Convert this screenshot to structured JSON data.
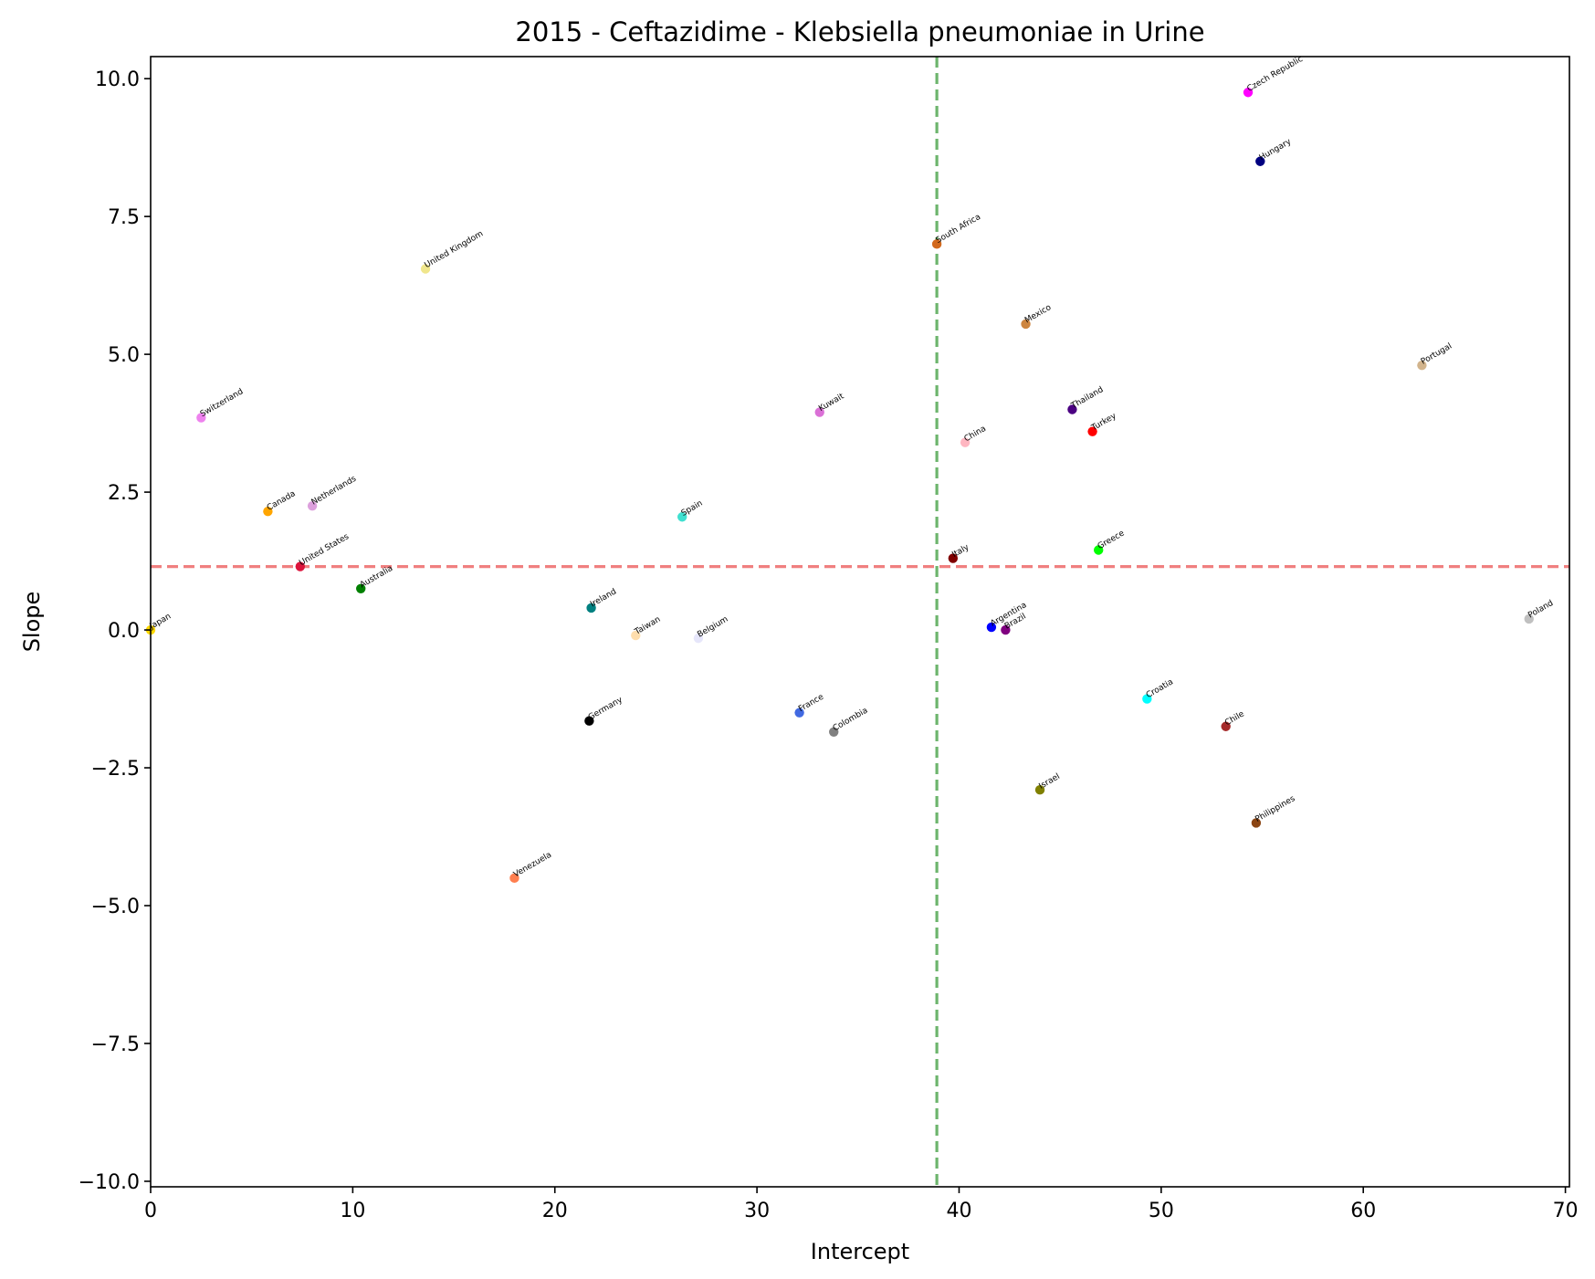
{
  "chart_data": {
    "type": "scatter",
    "title": "2015 - Ceftazidime - Klebsiella pneumoniae in Urine",
    "xlabel": "Intercept",
    "ylabel": "Slope",
    "xlim": [
      0,
      70.2
    ],
    "ylim": [
      -10.1,
      10.4
    ],
    "xticks": [
      0,
      10,
      20,
      30,
      40,
      50,
      60,
      70
    ],
    "yticks": [
      -10.0,
      -7.5,
      -5.0,
      -2.5,
      0.0,
      2.5,
      5.0,
      7.5,
      10.0
    ],
    "xtick_labels": [
      "0",
      "10",
      "20",
      "30",
      "40",
      "50",
      "60",
      "70"
    ],
    "ytick_labels": [
      "−10.0",
      "−7.5",
      "−5.0",
      "−2.5",
      "0.0",
      "2.5",
      "5.0",
      "7.5",
      "10.0"
    ],
    "grid": false,
    "reference_lines": [
      {
        "orientation": "vertical",
        "value": 38.9,
        "color": "#6db56d",
        "style": "dashed"
      },
      {
        "orientation": "horizontal",
        "value": 1.15,
        "color": "#f07f7f",
        "style": "dashed"
      }
    ],
    "points": [
      {
        "label": "Czech Republic",
        "x": 54.3,
        "y": 9.75,
        "color": "#ff00ff"
      },
      {
        "label": "Hungary",
        "x": 54.9,
        "y": 8.5,
        "color": "#000080"
      },
      {
        "label": "South Africa",
        "x": 38.9,
        "y": 7.0,
        "color": "#d2691e"
      },
      {
        "label": "United Kingdom",
        "x": 13.6,
        "y": 6.55,
        "color": "#f0e68c"
      },
      {
        "label": "Mexico",
        "x": 43.3,
        "y": 5.55,
        "color": "#cd853f"
      },
      {
        "label": "Portugal",
        "x": 62.9,
        "y": 4.8,
        "color": "#d2b48c"
      },
      {
        "label": "Switzerland",
        "x": 2.5,
        "y": 3.85,
        "color": "#ee82ee"
      },
      {
        "label": "Kuwait",
        "x": 33.1,
        "y": 3.95,
        "color": "#da70d6"
      },
      {
        "label": "Thailand",
        "x": 45.6,
        "y": 4.0,
        "color": "#4b0082"
      },
      {
        "label": "China",
        "x": 40.3,
        "y": 3.4,
        "color": "#ffb6c1"
      },
      {
        "label": "Turkey",
        "x": 46.6,
        "y": 3.6,
        "color": "#ff0000"
      },
      {
        "label": "Canada",
        "x": 5.8,
        "y": 2.15,
        "color": "#ffa500"
      },
      {
        "label": "Netherlands",
        "x": 8.0,
        "y": 2.25,
        "color": "#dda0dd"
      },
      {
        "label": "Spain",
        "x": 26.3,
        "y": 2.05,
        "color": "#40e0d0"
      },
      {
        "label": "United States",
        "x": 7.4,
        "y": 1.15,
        "color": "#dc143c"
      },
      {
        "label": "Italy",
        "x": 39.7,
        "y": 1.3,
        "color": "#800000"
      },
      {
        "label": "Greece",
        "x": 46.9,
        "y": 1.45,
        "color": "#00ff00"
      },
      {
        "label": "Australia",
        "x": 10.4,
        "y": 0.75,
        "color": "#008000"
      },
      {
        "label": "Japan",
        "x": 0.0,
        "y": 0.0,
        "color": "#ffd700"
      },
      {
        "label": "Ireland",
        "x": 21.8,
        "y": 0.4,
        "color": "#008080"
      },
      {
        "label": "Taiwan",
        "x": 24.0,
        "y": -0.1,
        "color": "#ffdead"
      },
      {
        "label": "Belgium",
        "x": 27.1,
        "y": -0.15,
        "color": "#e6e6fa"
      },
      {
        "label": "Argentina",
        "x": 41.6,
        "y": 0.05,
        "color": "#0000ff"
      },
      {
        "label": "Brazil",
        "x": 42.3,
        "y": 0.0,
        "color": "#800080"
      },
      {
        "label": "Poland",
        "x": 68.2,
        "y": 0.2,
        "color": "#c0c0c0"
      },
      {
        "label": "Croatia",
        "x": 49.3,
        "y": -1.25,
        "color": "#00ffff"
      },
      {
        "label": "France",
        "x": 32.1,
        "y": -1.5,
        "color": "#4169e1"
      },
      {
        "label": "Germany",
        "x": 21.7,
        "y": -1.65,
        "color": "#000000"
      },
      {
        "label": "Colombia",
        "x": 33.8,
        "y": -1.85,
        "color": "#808080"
      },
      {
        "label": "Chile",
        "x": 53.2,
        "y": -1.75,
        "color": "#a52a2a"
      },
      {
        "label": "Israel",
        "x": 44.0,
        "y": -2.9,
        "color": "#808000"
      },
      {
        "label": "Philippines",
        "x": 54.7,
        "y": -3.5,
        "color": "#8b4513"
      },
      {
        "label": "Venezuela",
        "x": 18.0,
        "y": -4.5,
        "color": "#ff7f50"
      }
    ]
  }
}
